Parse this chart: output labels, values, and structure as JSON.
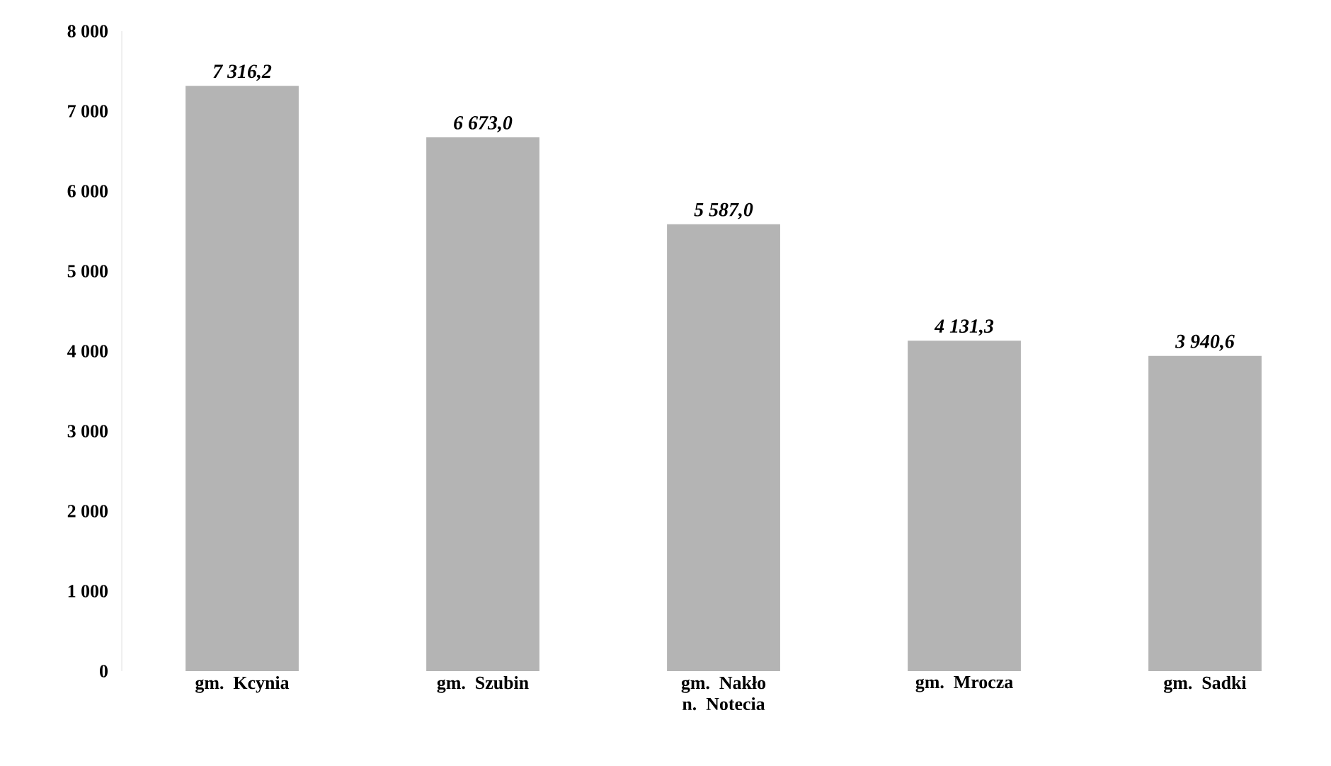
{
  "chart_data": {
    "type": "bar",
    "categories": [
      "gm. Kcynia",
      "gm. Szubin",
      "gm. Nakło n. Notecia",
      "gm. Mrocza",
      "gm. Sadki"
    ],
    "values": [
      7316.2,
      6673.0,
      5587.0,
      4131.3,
      3940.6
    ],
    "value_labels": [
      "7 316,2",
      "6 673,0",
      "5 587,0",
      "4 131,3",
      "3 940,6"
    ],
    "color": "#b4b4b4",
    "ylim": [
      0,
      8000
    ],
    "yticks": [
      0,
      {
        "value": 1000,
        "label": "1 000"
      },
      {
        "value": 2000,
        "label": "2 000"
      },
      {
        "value": 3000,
        "label": "3 000"
      },
      {
        "value": 4000,
        "label": "4 000"
      },
      {
        "value": 5000,
        "label": "5 000"
      },
      {
        "value": 6000,
        "label": "6 000"
      },
      {
        "value": 7000,
        "label": "7 000"
      },
      {
        "value": 8000,
        "label": "8 000"
      }
    ],
    "grid": false
  }
}
